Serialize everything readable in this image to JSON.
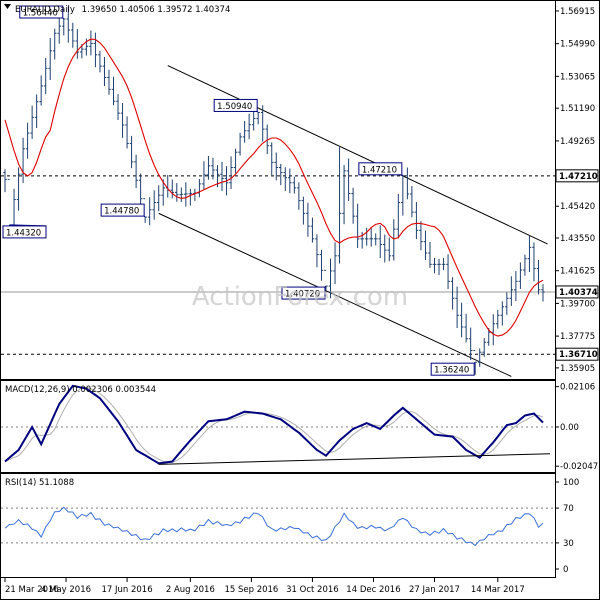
{
  "header": {
    "symbol": "EURAUD,Daily",
    "ohlc": "1.39650 1.40506 1.39572 1.40374"
  },
  "watermark": "ActionForex.com",
  "chart_data": [
    {
      "type": "candlestick",
      "title": "EURAUD,Daily",
      "ylim": [
        1.3525,
        1.575
      ],
      "y_ticks": [
        "1.56915",
        "1.54990",
        "1.53065",
        "1.51190",
        "1.49265",
        "1.47210",
        "1.45420",
        "1.43550",
        "1.41625",
        "1.40374",
        "1.39700",
        "1.37775",
        "1.36710",
        "1.35905"
      ],
      "x_ticks": [
        "21 Mar 2016",
        "4 May 2016",
        "17 Jun 2016",
        "2 Aug 2016",
        "15 Sep 2016",
        "31 Oct 2016",
        "14 Dec 2016",
        "27 Jan 2017",
        "14 Mar 2017"
      ],
      "last_price": "1.40374",
      "level_labels": [
        {
          "text": "1.56440",
          "idx": 13,
          "value": 1.5644
        },
        {
          "text": "1.44320",
          "idx": 1,
          "value": 1.4432
        },
        {
          "text": "1.44780",
          "idx": 31,
          "value": 1.4478
        },
        {
          "text": "1.50940",
          "idx": 56,
          "value": 1.5094
        },
        {
          "text": "1.40720",
          "idx": 71,
          "value": 1.4072
        },
        {
          "text": "1.47210",
          "idx": 88,
          "value": 1.4721
        },
        {
          "text": "1.36240",
          "idx": 104,
          "value": 1.3624
        }
      ],
      "horizontal_levels": [
        {
          "label": "1.47210",
          "value": 1.4721,
          "style": "dashed"
        },
        {
          "label": "1.40374",
          "value": 1.40374,
          "style": "solid"
        },
        {
          "label": "1.36710",
          "value": 1.3671,
          "style": "dashed"
        }
      ],
      "channel": {
        "upper": [
          {
            "idx": 36,
            "value": 1.537
          },
          {
            "idx": 120,
            "value": 1.432
          }
        ],
        "lower": [
          {
            "idx": 34,
            "value": 1.45
          },
          {
            "idx": 112,
            "value": 1.354
          }
        ]
      },
      "moving_average_color": "#e00000",
      "anchors": [
        [
          0,
          1.47
        ],
        [
          1,
          1.4432
        ],
        [
          4,
          1.488
        ],
        [
          8,
          1.525
        ],
        [
          11,
          1.556
        ],
        [
          13,
          1.5644
        ],
        [
          16,
          1.545
        ],
        [
          19,
          1.55
        ],
        [
          22,
          1.53
        ],
        [
          26,
          1.502
        ],
        [
          31,
          1.4478
        ],
        [
          35,
          1.465
        ],
        [
          38,
          1.461
        ],
        [
          42,
          1.462
        ],
        [
          45,
          1.478
        ],
        [
          49,
          1.468
        ],
        [
          52,
          1.495
        ],
        [
          56,
          1.5094
        ],
        [
          59,
          1.48
        ],
        [
          64,
          1.465
        ],
        [
          68,
          1.435
        ],
        [
          71,
          1.4072
        ],
        [
          73,
          1.425
        ],
        [
          75,
          1.475
        ],
        [
          78,
          1.435
        ],
        [
          82,
          1.435
        ],
        [
          85,
          1.425
        ],
        [
          88,
          1.4721
        ],
        [
          91,
          1.44
        ],
        [
          94,
          1.42
        ],
        [
          97,
          1.42
        ],
        [
          100,
          1.39
        ],
        [
          104,
          1.3624
        ],
        [
          107,
          1.38
        ],
        [
          110,
          1.395
        ],
        [
          113,
          1.41
        ],
        [
          116,
          1.43
        ],
        [
          118,
          1.405
        ],
        [
          119,
          1.4037
        ]
      ]
    },
    {
      "type": "line",
      "title": "MACD(12,26,9) 0.002306 0.003544",
      "y_ticks": [
        "0.02106",
        "0.00",
        "-0.020478"
      ],
      "ylim": [
        -0.0235,
        0.024
      ],
      "series_colors": [
        "#000080",
        "#b0b0b0"
      ],
      "support_line": [
        {
          "idx": 34,
          "value": -0.0195
        },
        {
          "idx": 119,
          "value": -0.014
        }
      ],
      "anchors": [
        [
          0,
          -0.018
        ],
        [
          3,
          -0.012
        ],
        [
          6,
          0.0
        ],
        [
          8,
          -0.009
        ],
        [
          12,
          0.012
        ],
        [
          15,
          0.0215
        ],
        [
          18,
          0.02
        ],
        [
          21,
          0.015
        ],
        [
          25,
          0.003
        ],
        [
          29,
          -0.012
        ],
        [
          34,
          -0.019
        ],
        [
          37,
          -0.018
        ],
        [
          41,
          -0.007
        ],
        [
          45,
          0.003
        ],
        [
          49,
          0.004
        ],
        [
          53,
          0.008
        ],
        [
          57,
          0.007
        ],
        [
          61,
          0.004
        ],
        [
          65,
          -0.003
        ],
        [
          69,
          -0.012
        ],
        [
          71,
          -0.015
        ],
        [
          74,
          -0.007
        ],
        [
          77,
          -0.001
        ],
        [
          80,
          0.002
        ],
        [
          83,
          -0.001
        ],
        [
          86,
          0.006
        ],
        [
          88,
          0.01
        ],
        [
          91,
          0.004
        ],
        [
          95,
          -0.004
        ],
        [
          99,
          -0.005
        ],
        [
          102,
          -0.012
        ],
        [
          105,
          -0.016
        ],
        [
          108,
          -0.008
        ],
        [
          111,
          0.001
        ],
        [
          113,
          0.002
        ],
        [
          115,
          0.006
        ],
        [
          117,
          0.007
        ],
        [
          119,
          0.0023
        ]
      ]
    },
    {
      "type": "line",
      "title": "RSI(14) 51.1088",
      "y_ticks": [
        "100",
        "70",
        "30",
        "0"
      ],
      "ylim": [
        0,
        100
      ],
      "series_color": "#3a6fd8",
      "anchors": [
        [
          0,
          48
        ],
        [
          3,
          55
        ],
        [
          6,
          48
        ],
        [
          8,
          38
        ],
        [
          11,
          65
        ],
        [
          13,
          70
        ],
        [
          16,
          60
        ],
        [
          19,
          63
        ],
        [
          22,
          52
        ],
        [
          26,
          45
        ],
        [
          31,
          33
        ],
        [
          35,
          44
        ],
        [
          38,
          45
        ],
        [
          42,
          45
        ],
        [
          45,
          55
        ],
        [
          49,
          50
        ],
        [
          52,
          55
        ],
        [
          56,
          65
        ],
        [
          59,
          45
        ],
        [
          64,
          48
        ],
        [
          68,
          38
        ],
        [
          71,
          32
        ],
        [
          73,
          48
        ],
        [
          75,
          62
        ],
        [
          78,
          48
        ],
        [
          82,
          48
        ],
        [
          85,
          45
        ],
        [
          88,
          60
        ],
        [
          91,
          45
        ],
        [
          94,
          40
        ],
        [
          97,
          45
        ],
        [
          100,
          36
        ],
        [
          104,
          28
        ],
        [
          107,
          38
        ],
        [
          110,
          45
        ],
        [
          113,
          58
        ],
        [
          116,
          65
        ],
        [
          118,
          50
        ],
        [
          119,
          51
        ]
      ]
    }
  ]
}
